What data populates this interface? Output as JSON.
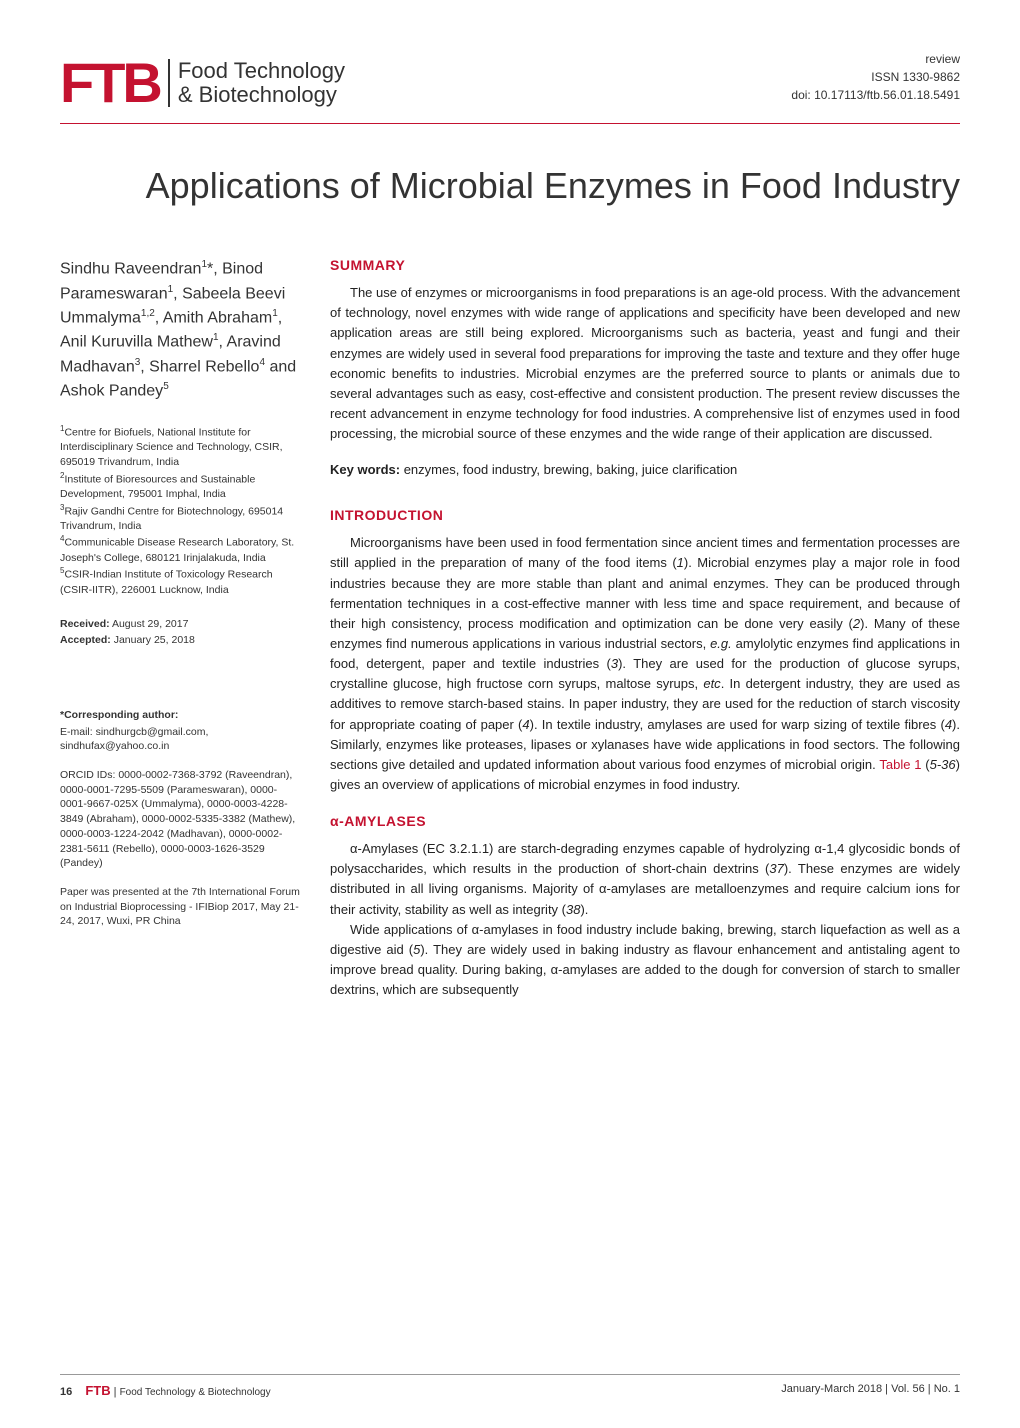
{
  "header": {
    "logo_ftb": "FTB",
    "logo_line1": "Food Technology",
    "logo_line2": "& Biotechnology",
    "review_label": "review",
    "issn": "ISSN 1330-9862",
    "doi": "doi: 10.17113/ftb.56.01.18.5491"
  },
  "title": "Applications of Microbial Enzymes in Food Industry",
  "authors_html": "Sindhu Raveendran<sup>1</sup>*, Binod Parameswaran<sup>1</sup>, Sabeela Beevi Ummalyma<sup>1,2</sup>, Amith Abraham<sup>1</sup>, Anil Kuruvilla Mathew<sup>1</sup>, Aravind Madhavan<sup>3</sup>, Sharrel Rebello<sup>4</sup> and Ashok Pandey<sup>5</sup>",
  "affiliations": [
    "<sup>1</sup>Centre for Biofuels, National Institute for Interdisciplinary Science and Technology, CSIR, 695019 Trivandrum, India",
    "<sup>2</sup>Institute of Bioresources and Sustainable Development, 795001 Imphal, India",
    "<sup>3</sup>Rajiv Gandhi Centre for Biotechnology, 695014 Trivandrum, India",
    "<sup>4</sup>Communicable Disease Research Laboratory, St. Joseph's College, 680121 Irinjalakuda, India",
    "<sup>5</sup>CSIR-Indian Institute of Toxicology Research (CSIR-IITR), 226001 Lucknow, India"
  ],
  "received": {
    "received_label": "Received:",
    "received_date": "August 29, 2017",
    "accepted_label": "Accepted:",
    "accepted_date": "January 25, 2018"
  },
  "corresponding": {
    "header": "*Corresponding author:",
    "email": "E-mail: sindhurgcb@gmail.com, sindhufax@yahoo.co.in",
    "orcid": "ORCID IDs: 0000-0002-7368-3792 (Raveendran), 0000-0001-7295-5509 (Parameswaran), 0000-0001-9667-025X (Ummalyma), 0000-0003-4228-3849 (Abraham), 0000-0002-5335-3382 (Mathew), 0000-0003-1224-2042 (Madhavan), 0000-0002-2381-5611 (Rebello), 0000-0003-1626-3529 (Pandey)",
    "conference": "Paper was presented at the 7th International Forum on Industrial Bioprocessing - IFIBiop 2017, May 21-24, 2017, Wuxi, PR China"
  },
  "sections": {
    "summary": {
      "heading": "SUMMARY",
      "body": "The use of enzymes or microorganisms in food preparations is an age-old process. With the advancement of technology, novel enzymes with wide range of applications and specificity have been developed and new application areas are still being explored. Microorganisms such as bacteria, yeast and fungi and their enzymes are widely used in several food preparations for improving the taste and texture and they offer huge economic benefits to industries. Microbial enzymes are the preferred source to plants or animals due to several advantages such as easy, cost-effective and consistent production. The present review discusses the recent advancement in enzyme technology for food industries. A comprehensive list of enzymes used in food processing, the microbial source of these enzymes and the wide range of their application are discussed."
    },
    "keywords": {
      "label": "Key words:",
      "text": "enzymes, food industry, brewing, baking, juice clarification"
    },
    "introduction": {
      "heading": "INTRODUCTION",
      "body_html": "Microorganisms have been used in food fermentation since ancient times and fermentation processes are still applied in the preparation of many of the food items (<span class='italic'>1</span>). Microbial enzymes play a major role in food industries because they are more stable than plant and animal enzymes. They can be produced through fermentation techniques in a cost-effective manner with less time and space requirement, and because of their high consistency, process modification and optimization can be done very easily (<span class='italic'>2</span>). Many of these enzymes find numerous applications in various industrial sectors, <span class='italic'>e.g.</span> amylolytic enzymes find applications in food, detergent, paper and textile industries (<span class='italic'>3</span>). They are used for the production of glucose syrups, crystalline glucose, high fructose corn syrups, maltose syrups, <span class='italic'>etc</span>. In detergent industry, they are used as additives to remove starch-based stains. In paper industry, they are used for the reduction of starch viscosity for appropriate coating of paper (<span class='italic'>4</span>). In textile industry, amylases are used for warp sizing of textile fibres (<span class='italic'>4</span>). Similarly, enzymes like proteases, lipases or xylanases have wide applications in food sectors. The following sections give detailed and updated information about various food enzymes of microbial origin. <span class='red-text'>Table 1</span> (<span class='italic'>5-36</span>) gives an overview of applications of microbial enzymes in food industry."
    },
    "amylases": {
      "heading": "α-AMYLASES",
      "para1_html": "α-Amylases (EC 3.2.1.1) are starch-degrading enzymes capable of hydrolyzing α-1,4 glycosidic bonds of polysaccharides, which results in the production of short-chain dextrins (<span class='italic'>37</span>). These enzymes are widely distributed in all living organisms. Majority of α-amylases are metalloenzymes and require calcium ions for their activity, stability as well as integrity (<span class='italic'>38</span>).",
      "para2_html": "Wide applications of α-amylases in food industry include baking, brewing, starch liquefaction as well as a digestive aid (<span class='italic'>5</span>). They are widely used in baking industry as flavour enhancement and antistaling agent to improve bread quality. During baking, α-amylases are added to the dough for conversion of starch to smaller dextrins, which are subsequently"
    }
  },
  "footer": {
    "page": "16",
    "ftb": "FTB",
    "journal": "Food Technology & Biotechnology",
    "issue": "January-March 2018 | Vol. 56 | No. 1"
  },
  "colors": {
    "brand_red": "#c41230",
    "text": "#333333",
    "body_text": "#222222"
  }
}
